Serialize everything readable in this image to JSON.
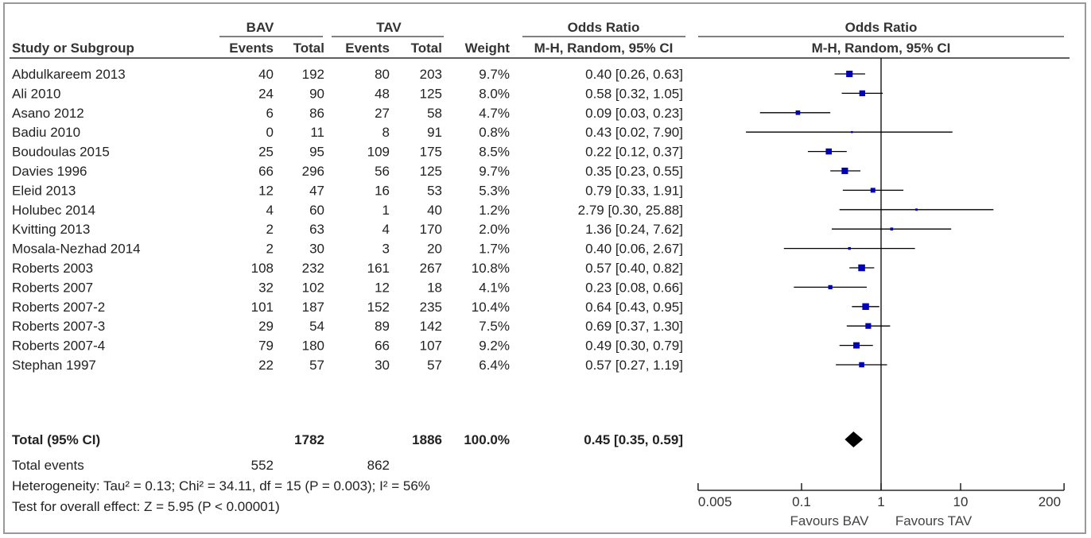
{
  "chart_data": {
    "type": "forest",
    "group_headers": {
      "bav": "BAV",
      "tav": "TAV",
      "or_text": "Odds Ratio",
      "or_plot": "Odds Ratio"
    },
    "columns": {
      "study": "Study or Subgroup",
      "bav_events": "Events",
      "bav_total": "Total",
      "tav_events": "Events",
      "tav_total": "Total",
      "weight": "Weight",
      "or_text": "M-H, Random, 95% CI",
      "or_plot": "M-H, Random, 95% CI"
    },
    "studies": [
      {
        "name": "Abdulkareem 2013",
        "bav_events": "40",
        "bav_total": "192",
        "tav_events": "80",
        "tav_total": "203",
        "weight": "9.7%",
        "ci_text": "0.40 [0.26, 0.63]",
        "or": 0.4,
        "lo": 0.26,
        "hi": 0.63,
        "w": 9.7
      },
      {
        "name": "Ali 2010",
        "bav_events": "24",
        "bav_total": "90",
        "tav_events": "48",
        "tav_total": "125",
        "weight": "8.0%",
        "ci_text": "0.58 [0.32, 1.05]",
        "or": 0.58,
        "lo": 0.32,
        "hi": 1.05,
        "w": 8.0
      },
      {
        "name": "Asano 2012",
        "bav_events": "6",
        "bav_total": "86",
        "tav_events": "27",
        "tav_total": "58",
        "weight": "4.7%",
        "ci_text": "0.09 [0.03, 0.23]",
        "or": 0.09,
        "lo": 0.03,
        "hi": 0.23,
        "w": 4.7
      },
      {
        "name": "Badiu 2010",
        "bav_events": "0",
        "bav_total": "11",
        "tav_events": "8",
        "tav_total": "91",
        "weight": "0.8%",
        "ci_text": "0.43 [0.02, 7.90]",
        "or": 0.43,
        "lo": 0.02,
        "hi": 7.9,
        "w": 0.8
      },
      {
        "name": "Boudoulas 2015",
        "bav_events": "25",
        "bav_total": "95",
        "tav_events": "109",
        "tav_total": "175",
        "weight": "8.5%",
        "ci_text": "0.22 [0.12, 0.37]",
        "or": 0.22,
        "lo": 0.12,
        "hi": 0.37,
        "w": 8.5
      },
      {
        "name": "Davies 1996",
        "bav_events": "66",
        "bav_total": "296",
        "tav_events": "56",
        "tav_total": "125",
        "weight": "9.7%",
        "ci_text": "0.35 [0.23, 0.55]",
        "or": 0.35,
        "lo": 0.23,
        "hi": 0.55,
        "w": 9.7
      },
      {
        "name": "Eleid 2013",
        "bav_events": "12",
        "bav_total": "47",
        "tav_events": "16",
        "tav_total": "53",
        "weight": "5.3%",
        "ci_text": "0.79 [0.33, 1.91]",
        "or": 0.79,
        "lo": 0.33,
        "hi": 1.91,
        "w": 5.3
      },
      {
        "name": "Holubec 2014",
        "bav_events": "4",
        "bav_total": "60",
        "tav_events": "1",
        "tav_total": "40",
        "weight": "1.2%",
        "ci_text": "2.79 [0.30, 25.88]",
        "or": 2.79,
        "lo": 0.3,
        "hi": 25.88,
        "w": 1.2
      },
      {
        "name": "Kvitting 2013",
        "bav_events": "2",
        "bav_total": "63",
        "tav_events": "4",
        "tav_total": "170",
        "weight": "2.0%",
        "ci_text": "1.36 [0.24, 7.62]",
        "or": 1.36,
        "lo": 0.24,
        "hi": 7.62,
        "w": 2.0
      },
      {
        "name": "Mosala-Nezhad 2014",
        "bav_events": "2",
        "bav_total": "30",
        "tav_events": "3",
        "tav_total": "20",
        "weight": "1.7%",
        "ci_text": "0.40 [0.06, 2.67]",
        "or": 0.4,
        "lo": 0.06,
        "hi": 2.67,
        "w": 1.7
      },
      {
        "name": "Roberts 2003",
        "bav_events": "108",
        "bav_total": "232",
        "tav_events": "161",
        "tav_total": "267",
        "weight": "10.8%",
        "ci_text": "0.57 [0.40, 0.82]",
        "or": 0.57,
        "lo": 0.4,
        "hi": 0.82,
        "w": 10.8
      },
      {
        "name": "Roberts 2007",
        "bav_events": "32",
        "bav_total": "102",
        "tav_events": "12",
        "tav_total": "18",
        "weight": "4.1%",
        "ci_text": "0.23 [0.08, 0.66]",
        "or": 0.23,
        "lo": 0.08,
        "hi": 0.66,
        "w": 4.1
      },
      {
        "name": "Roberts 2007-2",
        "bav_events": "101",
        "bav_total": "187",
        "tav_events": "152",
        "tav_total": "235",
        "weight": "10.4%",
        "ci_text": "0.64 [0.43, 0.95]",
        "or": 0.64,
        "lo": 0.43,
        "hi": 0.95,
        "w": 10.4
      },
      {
        "name": "Roberts 2007-3",
        "bav_events": "29",
        "bav_total": "54",
        "tav_events": "89",
        "tav_total": "142",
        "weight": "7.5%",
        "ci_text": "0.69 [0.37, 1.30]",
        "or": 0.69,
        "lo": 0.37,
        "hi": 1.3,
        "w": 7.5
      },
      {
        "name": "Roberts 2007-4",
        "bav_events": "79",
        "bav_total": "180",
        "tav_events": "66",
        "tav_total": "107",
        "weight": "9.2%",
        "ci_text": "0.49 [0.30, 0.79]",
        "or": 0.49,
        "lo": 0.3,
        "hi": 0.79,
        "w": 9.2
      },
      {
        "name": "Stephan 1997",
        "bav_events": "22",
        "bav_total": "57",
        "tav_events": "30",
        "tav_total": "57",
        "weight": "6.4%",
        "ci_text": "0.57 [0.27, 1.19]",
        "or": 0.57,
        "lo": 0.27,
        "hi": 1.19,
        "w": 6.4
      }
    ],
    "total": {
      "label": "Total (95% CI)",
      "bav_total": "1782",
      "tav_total": "1886",
      "weight": "100.0%",
      "ci_text": "0.45 [0.35, 0.59]",
      "or": 0.45,
      "lo": 0.35,
      "hi": 0.59
    },
    "total_events": {
      "label": "Total events",
      "bav": "552",
      "tav": "862"
    },
    "heterogeneity": "Heterogeneity: Tau² = 0.13; Chi² = 34.11, df = 15 (P = 0.003); I² = 56%",
    "overall_effect": "Test for overall effect: Z = 5.95 (P < 0.00001)",
    "x_axis": {
      "scale": "log",
      "range": [
        0.005,
        200
      ],
      "ticks": [
        0.005,
        0.1,
        1,
        10,
        200
      ],
      "tick_labels": [
        "0.005",
        "0.1",
        "1",
        "10",
        "200"
      ],
      "favours_left": "Favours BAV",
      "favours_right": "Favours TAV"
    },
    "colors": {
      "marker": "#0000bb",
      "diamond": "#000000",
      "frame": "#999999"
    }
  }
}
